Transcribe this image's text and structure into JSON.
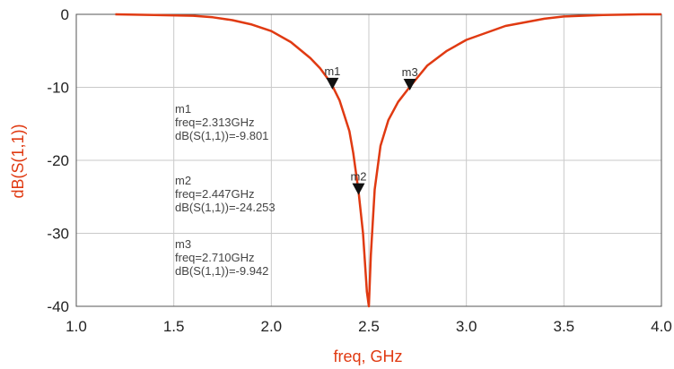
{
  "chart_data": {
    "type": "line",
    "title": "",
    "xlabel": "freq, GHz",
    "ylabel": "dB(S(1,1))",
    "xlim": [
      1.0,
      4.0
    ],
    "ylim": [
      -40,
      0
    ],
    "x_ticks": [
      "1.0",
      "1.5",
      "2.0",
      "2.5",
      "3.0",
      "3.5",
      "4.0"
    ],
    "y_ticks": [
      "0",
      "-10",
      "-20",
      "-30",
      "-40"
    ],
    "grid": true,
    "line_color": "#e03a12",
    "series": [
      {
        "x": [
          1.2,
          1.4,
          1.6,
          1.7,
          1.8,
          1.9,
          2.0,
          2.1,
          2.2,
          2.25,
          2.3,
          2.313,
          2.35,
          2.4,
          2.42,
          2.447,
          2.47,
          2.49,
          2.5,
          2.51,
          2.53,
          2.56,
          2.6,
          2.65,
          2.71,
          2.8,
          2.9,
          3.0,
          3.2,
          3.4,
          3.5,
          3.7,
          3.9,
          4.0
        ],
        "y": [
          0.0,
          -0.1,
          -0.2,
          -0.4,
          -0.8,
          -1.4,
          -2.3,
          -3.8,
          -6.0,
          -7.4,
          -9.2,
          -9.8,
          -11.8,
          -16.0,
          -19.0,
          -24.253,
          -30.0,
          -38.0,
          -40.0,
          -33.0,
          -24.0,
          -18.0,
          -14.5,
          -12.0,
          -9.942,
          -7.0,
          -5.0,
          -3.5,
          -1.6,
          -0.6,
          -0.3,
          -0.1,
          0.0,
          0.0
        ]
      }
    ],
    "markers": [
      {
        "name": "m1",
        "freq": 2.313,
        "value": -9.801,
        "freq_text": "freq=2.313GHz",
        "value_text": "dB(S(1,1))=-9.801"
      },
      {
        "name": "m2",
        "freq": 2.447,
        "value": -24.253,
        "freq_text": "freq=2.447GHz",
        "value_text": "dB(S(1,1))=-24.253"
      },
      {
        "name": "m3",
        "freq": 2.71,
        "value": -9.942,
        "freq_text": "freq=2.710GHz",
        "value_text": "dB(S(1,1))=-9.942"
      }
    ]
  }
}
